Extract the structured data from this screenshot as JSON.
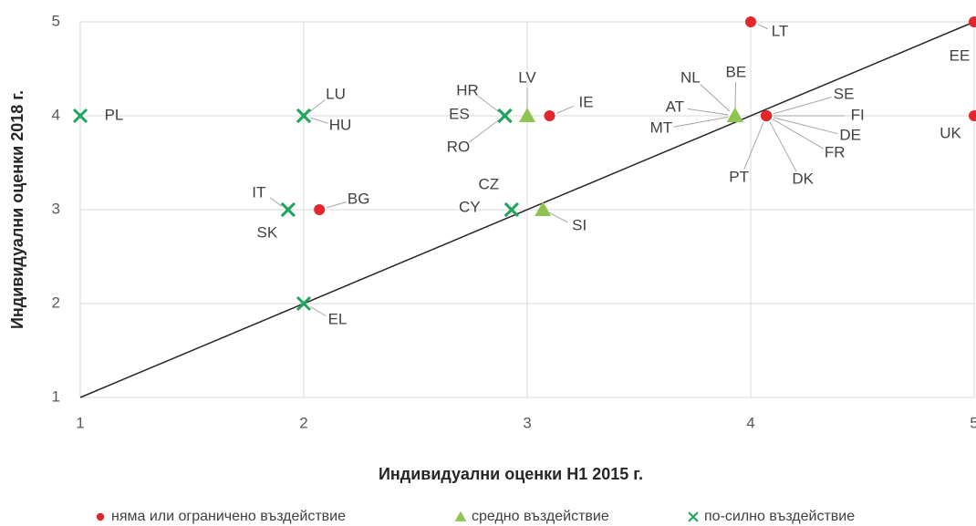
{
  "chart_data": {
    "type": "scatter",
    "xlabel": "Индивидуални оценки H1 2015 г.",
    "ylabel": "Индивидуални оценки 2018 г.",
    "xlim": [
      1,
      5
    ],
    "ylim": [
      1,
      5
    ],
    "xticks": [
      1,
      2,
      3,
      4,
      5
    ],
    "yticks": [
      1,
      2,
      3,
      4,
      5
    ],
    "grid": true,
    "legend": "bottom",
    "series": [
      {
        "name": "няма или ограничено въздействие",
        "color": "#e3262b",
        "marker": "circle",
        "labels": [
          "LT",
          "EE",
          "UK",
          "IE",
          "BG",
          "SE",
          "FI",
          "DE",
          "FR",
          "DK",
          "PT"
        ],
        "x": [
          4,
          5,
          5,
          3.1,
          2.07,
          4.07,
          4.07,
          4.07,
          4.07,
          4.07,
          4.07
        ],
        "values": [
          5,
          5,
          4,
          4,
          3,
          4,
          4,
          4,
          4,
          4,
          4
        ]
      },
      {
        "name": "средно въздействие",
        "color": "#8fc451",
        "marker": "triangle",
        "labels": [
          "LV",
          "SI",
          "NL",
          "BE",
          "AT",
          "MT"
        ],
        "x": [
          3,
          3.07,
          3.93,
          3.93,
          3.93,
          3.93
        ],
        "values": [
          4,
          3,
          4,
          4,
          4,
          4
        ]
      },
      {
        "name": "по-силно въздействие",
        "color": "#1fa55f",
        "marker": "x",
        "labels": [
          "PL",
          "LU",
          "HU",
          "HR",
          "ES",
          "RO",
          "IT",
          "SK",
          "CY",
          "CZ",
          "EL"
        ],
        "x": [
          1,
          2,
          2,
          2.9,
          2.9,
          2.9,
          1.93,
          1.93,
          2.93,
          2.93,
          2
        ],
        "values": [
          4,
          4,
          4,
          4,
          4,
          4,
          3,
          3,
          3,
          3,
          2
        ]
      }
    ]
  }
}
